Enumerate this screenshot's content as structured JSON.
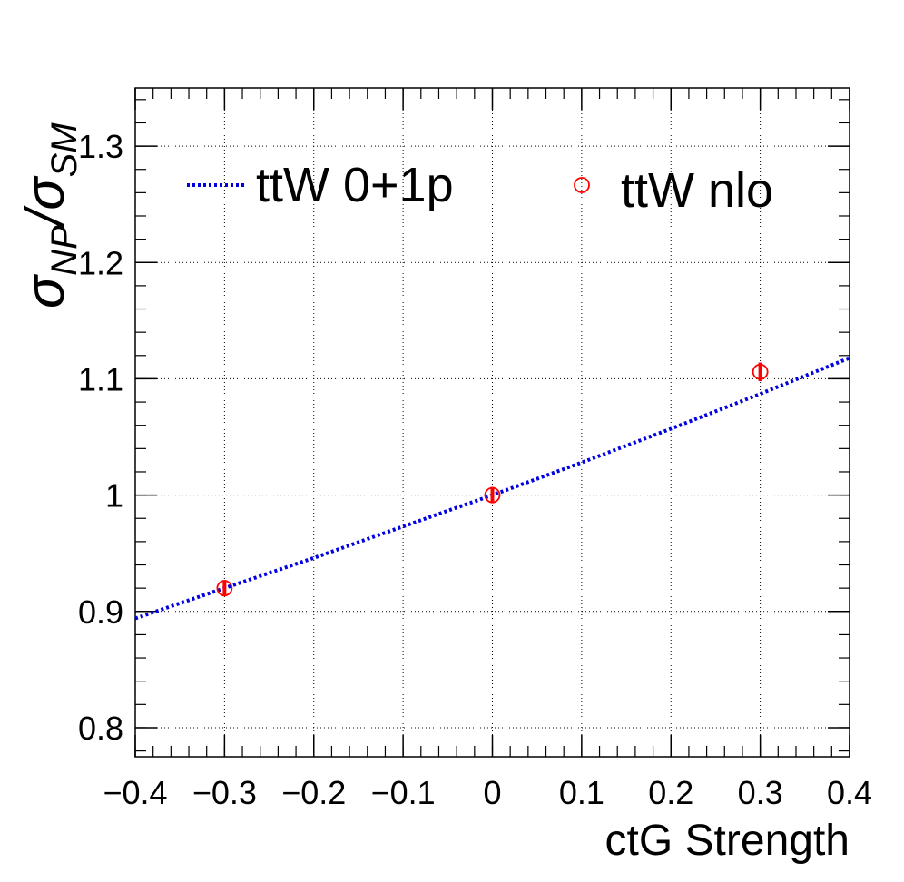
{
  "chart_data": {
    "type": "line",
    "xlabel": "ctG Strength",
    "ylabel": {
      "symbol": "σ",
      "num_sub": "NP",
      "slash": "/",
      "den_symbol": "σ",
      "den_sub": "SM"
    },
    "xlim": [
      -0.4,
      0.4
    ],
    "ylim": [
      0.775,
      1.35
    ],
    "x_ticks": [
      {
        "value": -0.4,
        "label": "−0.4"
      },
      {
        "value": -0.3,
        "label": "−0.3"
      },
      {
        "value": -0.2,
        "label": "−0.2"
      },
      {
        "value": -0.1,
        "label": "−0.1"
      },
      {
        "value": 0.0,
        "label": "0"
      },
      {
        "value": 0.1,
        "label": "0.1"
      },
      {
        "value": 0.2,
        "label": "0.2"
      },
      {
        "value": 0.3,
        "label": "0.3"
      },
      {
        "value": 0.4,
        "label": "0.4"
      }
    ],
    "y_ticks": [
      {
        "value": 0.8,
        "label": "0.8"
      },
      {
        "value": 0.9,
        "label": "0.9"
      },
      {
        "value": 1.0,
        "label": "1"
      },
      {
        "value": 1.1,
        "label": "1.1"
      },
      {
        "value": 1.2,
        "label": "1.2"
      },
      {
        "value": 1.3,
        "label": "1.3"
      }
    ],
    "grid": true,
    "legend_position": "top",
    "series": [
      {
        "name": "ttW 0+1p",
        "style": "dotted-line",
        "color": "#0000e0",
        "x": [
          -0.4,
          -0.3,
          -0.2,
          -0.1,
          0.0,
          0.1,
          0.2,
          0.3,
          0.4
        ],
        "y": [
          0.894,
          0.92,
          0.946,
          0.973,
          1.0,
          1.028,
          1.057,
          1.087,
          1.118
        ]
      },
      {
        "name": "ttW nlo",
        "style": "open-circle-markers",
        "color": "#ff0000",
        "x": [
          -0.3,
          0.0,
          0.3
        ],
        "y": [
          0.92,
          1.0,
          1.106
        ],
        "err": [
          0.007,
          0.007,
          0.008
        ]
      }
    ]
  }
}
